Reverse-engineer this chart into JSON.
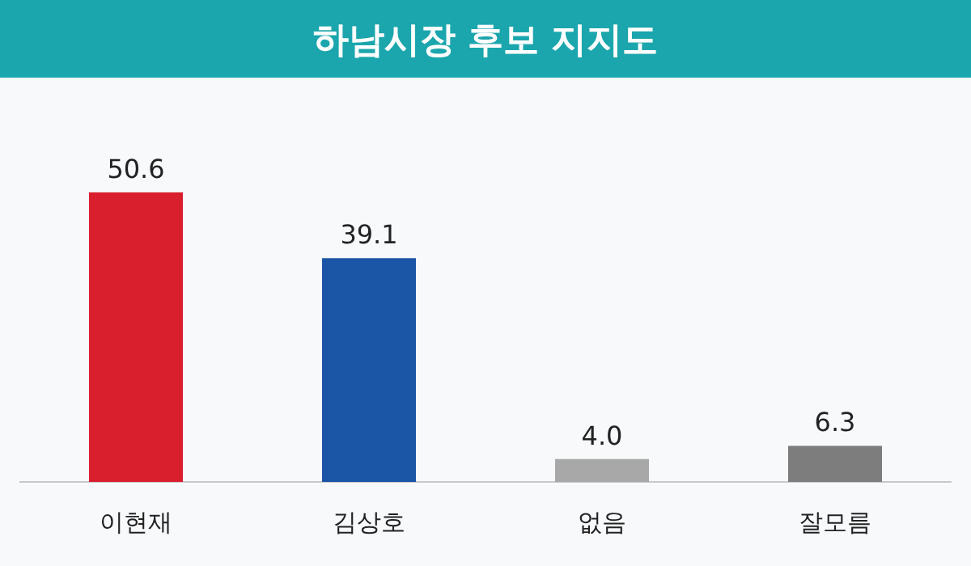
{
  "chart_data": {
    "type": "bar",
    "title": "하남시장 후보 지지도",
    "categories": [
      "이현재",
      "김상호",
      "없음",
      "잘모름"
    ],
    "values": [
      50.6,
      39.1,
      4.0,
      6.3
    ],
    "value_labels": [
      "50.6",
      "39.1",
      "4.0",
      "6.3"
    ],
    "colors": [
      "#d91f2e",
      "#1b55a6",
      "#a8a8a8",
      "#7d7d7d"
    ]
  }
}
